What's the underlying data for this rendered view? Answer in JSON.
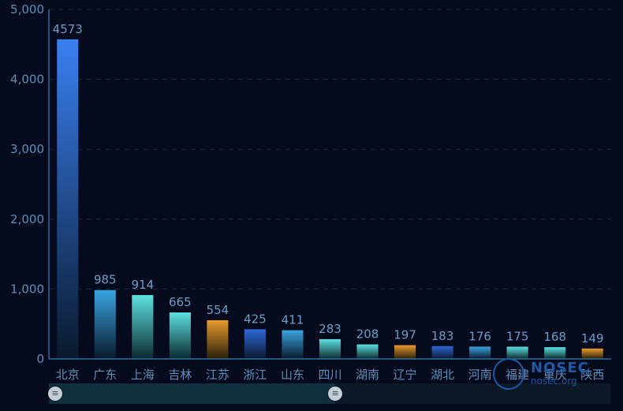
{
  "chart_data": {
    "type": "bar",
    "categories": [
      "北京",
      "广东",
      "上海",
      "吉林",
      "江苏",
      "浙江",
      "山东",
      "四川",
      "湖南",
      "辽宁",
      "湖北",
      "河南",
      "福建",
      "重庆",
      "陕西"
    ],
    "values": [
      4573,
      985,
      914,
      665,
      554,
      425,
      411,
      283,
      208,
      197,
      183,
      176,
      175,
      168,
      149
    ],
    "ylim": [
      0,
      5000
    ],
    "yticks": [
      0,
      1000,
      2000,
      3000,
      4000,
      5000
    ],
    "ytick_labels": [
      "0",
      "1,000",
      "2,000",
      "3,000",
      "4,000",
      "5,000"
    ],
    "grid": true,
    "colors": {
      "palette": [
        [
          "#3a7ff0",
          "#0a1a2e"
        ],
        [
          "#3aa4e0",
          "#0a1a2e"
        ],
        [
          "#5ee0e0",
          "#0a2a30"
        ],
        [
          "#e89a30",
          "#2a1f0a"
        ],
        [
          "#2e66d8",
          "#0a1a2e"
        ]
      ],
      "bar_color_index": [
        0,
        1,
        2,
        2,
        3,
        4,
        1,
        2,
        2,
        3,
        4,
        1,
        2,
        2,
        3
      ],
      "axis": "#2f6d9a",
      "grid": "#1c2a3c"
    }
  },
  "datazoom": {
    "range_percent": [
      0,
      51
    ]
  },
  "watermark": {
    "main": "NOSEC",
    "sub": "nosec.org",
    "icon": "nosec-logo-icon"
  }
}
